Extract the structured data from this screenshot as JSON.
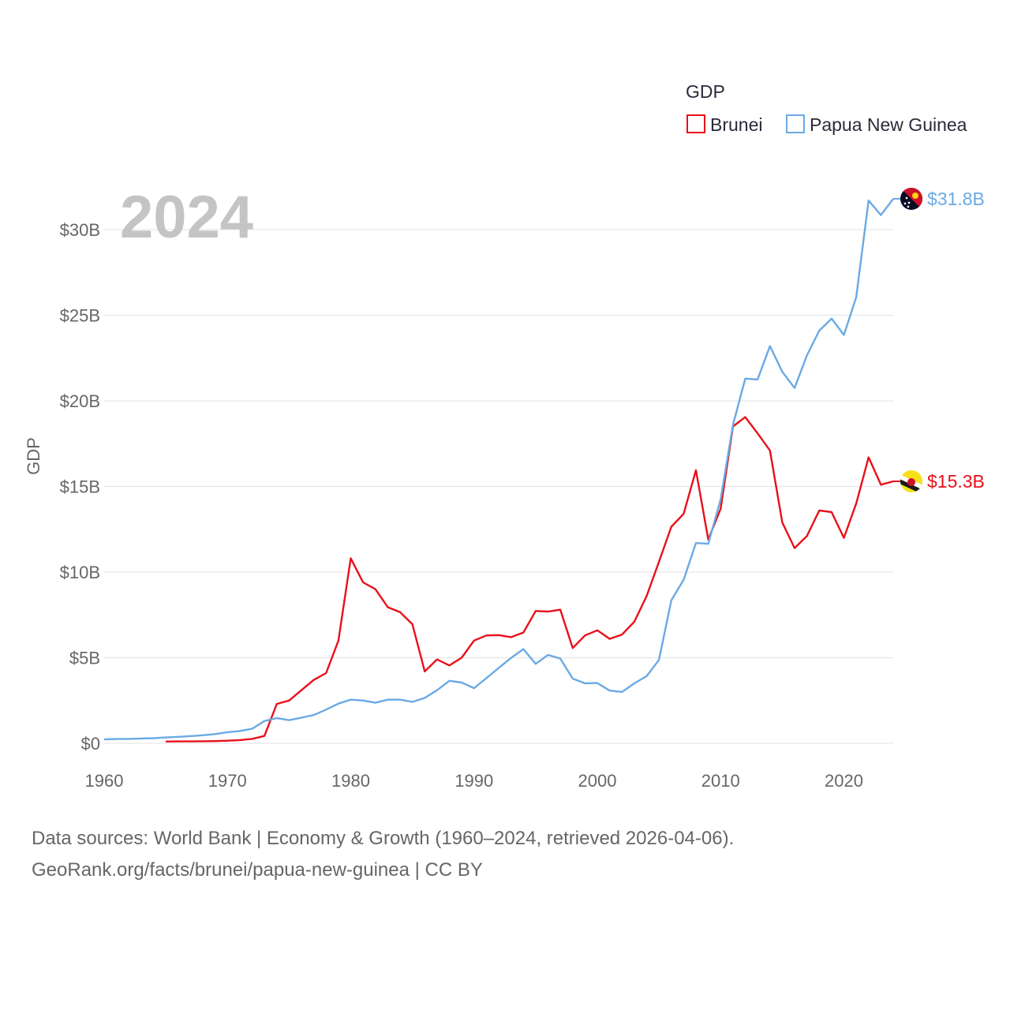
{
  "chart_data": {
    "type": "line",
    "legend_title": "GDP",
    "ylabel": "GDP",
    "year_label": "2024",
    "xlim": [
      1960,
      2024
    ],
    "ylim": [
      0,
      33
    ],
    "x_ticks": [
      1960,
      1970,
      1980,
      1990,
      2000,
      2010,
      2020
    ],
    "y_ticks": [
      {
        "value": 0,
        "label": "$0"
      },
      {
        "value": 5,
        "label": "$5B"
      },
      {
        "value": 10,
        "label": "$10B"
      },
      {
        "value": 15,
        "label": "$15B"
      },
      {
        "value": 20,
        "label": "$20B"
      },
      {
        "value": 25,
        "label": "$25B"
      },
      {
        "value": 30,
        "label": "$30B"
      }
    ],
    "series": [
      {
        "name": "Brunei",
        "color": "#e8101a",
        "end_label": "$15.3B",
        "flag": "brunei-flag-icon",
        "x": [
          1965,
          1966,
          1967,
          1968,
          1969,
          1970,
          1971,
          1972,
          1973,
          1974,
          1975,
          1976,
          1977,
          1978,
          1979,
          1980,
          1981,
          1982,
          1983,
          1984,
          1985,
          1986,
          1987,
          1988,
          1989,
          1990,
          1991,
          1992,
          1993,
          1994,
          1995,
          1996,
          1997,
          1998,
          1999,
          2000,
          2001,
          2002,
          2003,
          2004,
          2005,
          2006,
          2007,
          2008,
          2009,
          2010,
          2011,
          2012,
          2013,
          2014,
          2015,
          2016,
          2017,
          2018,
          2019,
          2020,
          2021,
          2022,
          2023,
          2024
        ],
        "values": [
          0.1,
          0.11,
          0.11,
          0.12,
          0.13,
          0.15,
          0.19,
          0.26,
          0.43,
          2.3,
          2.5,
          3.1,
          3.7,
          4.1,
          6.0,
          10.8,
          9.4,
          9.0,
          7.95,
          7.66,
          6.96,
          4.2,
          4.9,
          4.55,
          5.0,
          6.0,
          6.3,
          6.32,
          6.2,
          6.47,
          7.73,
          7.69,
          7.8,
          5.56,
          6.3,
          6.6,
          6.1,
          6.35,
          7.1,
          8.6,
          10.6,
          12.65,
          13.4,
          15.95,
          11.9,
          13.7,
          18.5,
          19.05,
          18.1,
          17.1,
          12.9,
          11.4,
          12.1,
          13.6,
          13.5,
          12.0,
          14.0,
          16.7,
          15.1,
          15.3
        ]
      },
      {
        "name": "Papua New Guinea",
        "color": "#6aaae4",
        "end_label": "$31.8B",
        "flag": "papua-new-guinea-flag-icon",
        "x": [
          1960,
          1961,
          1962,
          1963,
          1964,
          1965,
          1966,
          1967,
          1968,
          1969,
          1970,
          1971,
          1972,
          1973,
          1974,
          1975,
          1976,
          1977,
          1978,
          1979,
          1980,
          1981,
          1982,
          1983,
          1984,
          1985,
          1986,
          1987,
          1988,
          1989,
          1990,
          1991,
          1992,
          1993,
          1994,
          1995,
          1996,
          1997,
          1998,
          1999,
          2000,
          2001,
          2002,
          2003,
          2004,
          2005,
          2006,
          2007,
          2008,
          2009,
          2010,
          2011,
          2012,
          2013,
          2014,
          2015,
          2016,
          2017,
          2018,
          2019,
          2020,
          2021,
          2022,
          2023,
          2024
        ],
        "values": [
          0.23,
          0.25,
          0.26,
          0.28,
          0.3,
          0.34,
          0.38,
          0.42,
          0.47,
          0.54,
          0.65,
          0.72,
          0.85,
          1.3,
          1.47,
          1.35,
          1.5,
          1.65,
          1.97,
          2.32,
          2.55,
          2.5,
          2.37,
          2.55,
          2.55,
          2.42,
          2.65,
          3.1,
          3.65,
          3.55,
          3.22,
          3.8,
          4.4,
          4.98,
          5.5,
          4.64,
          5.16,
          4.95,
          3.78,
          3.5,
          3.52,
          3.08,
          3.0,
          3.5,
          3.92,
          4.87,
          8.35,
          9.55,
          11.7,
          11.65,
          14.25,
          18.6,
          21.3,
          21.25,
          23.2,
          21.7,
          20.75,
          22.65,
          24.1,
          24.8,
          23.85,
          26.05,
          31.7,
          30.85,
          31.8
        ]
      }
    ]
  },
  "source_lines": [
    "Data sources: World Bank | Economy & Growth (1960–2024, retrieved 2026-04-06).",
    "GeoRank.org/facts/brunei/papua-new-guinea | CC BY"
  ]
}
